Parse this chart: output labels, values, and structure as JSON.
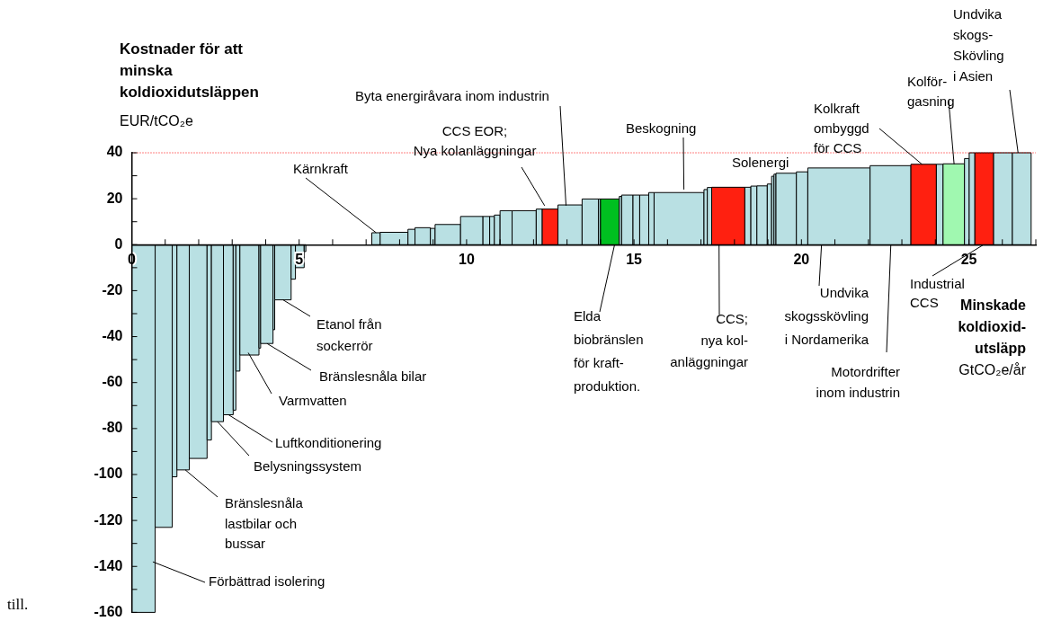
{
  "chart_data": {
    "type": "histogram",
    "title": "Kostnader för att\nminska\nkoldioxidutsläppen",
    "ylabel": "EUR/tCO₂e",
    "xlabel": "Minskade\nkoldioxid-\nutsläpp\nGtCO₂e/år",
    "bins": [
      0,
      0.7,
      1.21,
      1.35,
      1.72,
      2.25,
      2.38,
      2.74,
      3.03,
      3.11,
      3.23,
      3.8,
      3.85,
      4.22,
      4.27,
      4.76,
      4.89,
      5.15,
      5.2,
      7.17,
      7.42,
      8.25,
      8.46,
      8.92,
      9.06,
      9.82,
      10.49,
      10.69,
      10.83,
      11.0,
      11.36,
      12.08,
      12.26,
      12.73,
      13.45,
      13.94,
      14.0,
      14.56,
      14.63,
      14.97,
      15.17,
      15.44,
      15.6,
      17.09,
      17.19,
      17.32,
      18.31,
      18.49,
      18.67,
      18.98,
      19.11,
      19.18,
      19.24,
      19.85,
      20.19,
      22.05,
      23.27,
      24.03,
      24.23,
      24.87,
      25.01,
      25.18,
      25.74,
      26.3,
      26.86
    ],
    "values": [
      -160,
      -123,
      -101,
      -98,
      -93,
      -85,
      -77,
      -74,
      -72,
      -55,
      -48,
      -45,
      -43,
      -37,
      -24,
      -15,
      -10,
      -3,
      null,
      5.2,
      5.4,
      6.7,
      7.4,
      7.1,
      8.8,
      12.3,
      12.3,
      12.3,
      12.9,
      14.8,
      14.8,
      15.5,
      15.5,
      17.3,
      19.9,
      19.9,
      19.9,
      21,
      21.6,
      21.6,
      21.6,
      22.7,
      22.7,
      24,
      24.9,
      25,
      25,
      25.5,
      25.6,
      26.4,
      29.8,
      30.7,
      31.1,
      31.7,
      33.4,
      34.4,
      35,
      35,
      35.2,
      37.5,
      40,
      40,
      40,
      40
    ],
    "colors": [
      "#b9e0e3",
      "#b9e0e3",
      "#b9e0e3",
      "#b9e0e3",
      "#b9e0e3",
      "#b9e0e3",
      "#b9e0e3",
      "#b9e0e3",
      "#b9e0e3",
      "#b9e0e3",
      "#b9e0e3",
      "#b9e0e3",
      "#b9e0e3",
      "#b9e0e3",
      "#b9e0e3",
      "#b9e0e3",
      "#b9e0e3",
      "#b9e0e3",
      "#b9e0e3",
      "#b9e0e3",
      "#b9e0e3",
      "#b9e0e3",
      "#b9e0e3",
      "#b9e0e3",
      "#b9e0e3",
      "#b9e0e3",
      "#b9e0e3",
      "#b9e0e3",
      "#b9e0e3",
      "#b9e0e3",
      "#b9e0e3",
      "#b9e0e3",
      "#ff2010",
      "#b9e0e3",
      "#b9e0e3",
      "#b9e0e3",
      "#00c020",
      "#b9e0e3",
      "#b9e0e3",
      "#b9e0e3",
      "#b9e0e3",
      "#b9e0e3",
      "#b9e0e3",
      "#b9e0e3",
      "#b9e0e3",
      "#ff2010",
      "#b9e0e3",
      "#b9e0e3",
      "#b9e0e3",
      "#b9e0e3",
      "#b9e0e3",
      "#b9e0e3",
      "#b9e0e3",
      "#b9e0e3",
      "#b9e0e3",
      "#b9e0e3",
      "#ff2010",
      "#b9e0e3",
      "#a0f8b0",
      "#b9e0e3",
      "#b9e0e3",
      "#ff2010",
      "#b9e0e3",
      "#b9e0e3"
    ],
    "xlim": [
      0,
      27
    ],
    "xticks": [
      0,
      {
        "value": 1,
        "label": null
      },
      {
        "value": 2,
        "label": null
      },
      {
        "value": 3,
        "label": null
      },
      {
        "value": 4,
        "label": null
      },
      5,
      {
        "value": 6,
        "label": null
      },
      {
        "value": 7,
        "label": null
      },
      {
        "value": 8,
        "label": null
      },
      {
        "value": 9,
        "label": null
      },
      10,
      {
        "value": 11,
        "label": null
      },
      {
        "value": 12,
        "label": null
      },
      {
        "value": 13,
        "label": null
      },
      {
        "value": 14,
        "label": null
      },
      15,
      {
        "value": 16,
        "label": null
      },
      {
        "value": 17,
        "label": null
      },
      {
        "value": 18,
        "label": null
      },
      {
        "value": 19,
        "label": null
      },
      20,
      {
        "value": 21,
        "label": null
      },
      {
        "value": 22,
        "label": null
      },
      {
        "value": 23,
        "label": null
      },
      {
        "value": 24,
        "label": null
      },
      25,
      {
        "value": 26,
        "label": null
      },
      {
        "value": 27,
        "label": null
      }
    ],
    "ylim": [
      -160,
      40
    ],
    "yticks": [
      -160,
      {
        "value": -150,
        "label": null
      },
      -140,
      {
        "value": -130,
        "label": null
      },
      -120,
      {
        "value": -110,
        "label": null
      },
      -100,
      {
        "value": -90,
        "label": null
      },
      -80,
      {
        "value": -70,
        "label": null
      },
      -60,
      {
        "value": -50,
        "label": null
      },
      -40,
      {
        "value": -30,
        "label": null
      },
      -20,
      {
        "value": -10,
        "label": null
      },
      0,
      {
        "value": 10,
        "label": null
      },
      20,
      {
        "value": 30,
        "label": null
      },
      40
    ],
    "ref_lines": [
      {
        "axis": "y",
        "value": 40,
        "label": null,
        "color": "#ff0000",
        "line_style": "dotted"
      }
    ],
    "annotations": [
      {
        "text": "Förbättrad isolering",
        "x": 0.63,
        "y": -138
      },
      {
        "text": "Bränslesnåla\nlastbilar och\nbussar",
        "x": 1.6,
        "y": -98
      },
      {
        "text": "Belysningssystem",
        "x": 2.56,
        "y": -77
      },
      {
        "text": "Luftkonditionering",
        "x": 2.89,
        "y": -74
      },
      {
        "text": "Varmvatten",
        "x": 3.48,
        "y": -47
      },
      {
        "text": "Bränslesnåla bilar",
        "x": 4.04,
        "y": -43
      },
      {
        "text": "Etanol från\nsockerrör",
        "x": 4.52,
        "y": -24
      },
      {
        "text": "Kärnkraft",
        "x": 7.3,
        "y": 5.2
      },
      {
        "text": "CCS EOR;\nNya kolanläggningar",
        "x": 12.33,
        "y": 17
      },
      {
        "text": "Byta energiråvara inom industrin",
        "x": 12.97,
        "y": 17
      },
      {
        "text": "Beskogning",
        "x": 16.49,
        "y": 24
      },
      {
        "text": "Elda\nbiobränslen\nför kraft-\nproduktion.",
        "x": 14.42,
        "y": 0
      },
      {
        "text": "CCS;\nnya kol-\nanläggningar",
        "x": 17.54,
        "y": 0
      },
      "Solenergi",
      {
        "text": "Undvika\nskogsskövling\ni Nordamerika",
        "x": 20.6,
        "y": 0
      },
      {
        "text": "Motordrifter\ninom industrin",
        "x": 22.67,
        "y": 0
      },
      {
        "text": "Kolkraft\nombyggd\nför CCS",
        "x": 23.6,
        "y": 35
      },
      {
        "text": "Kolför-\ngasning",
        "x": 24.56,
        "y": 35
      },
      {
        "text": "Undvika\nskogs-\nSkövling\ni Asien",
        "x": 26.47,
        "y": 40
      },
      {
        "text": "Industrial\nCCS",
        "x": 25.44,
        "y": 0
      },
      "till."
    ]
  }
}
